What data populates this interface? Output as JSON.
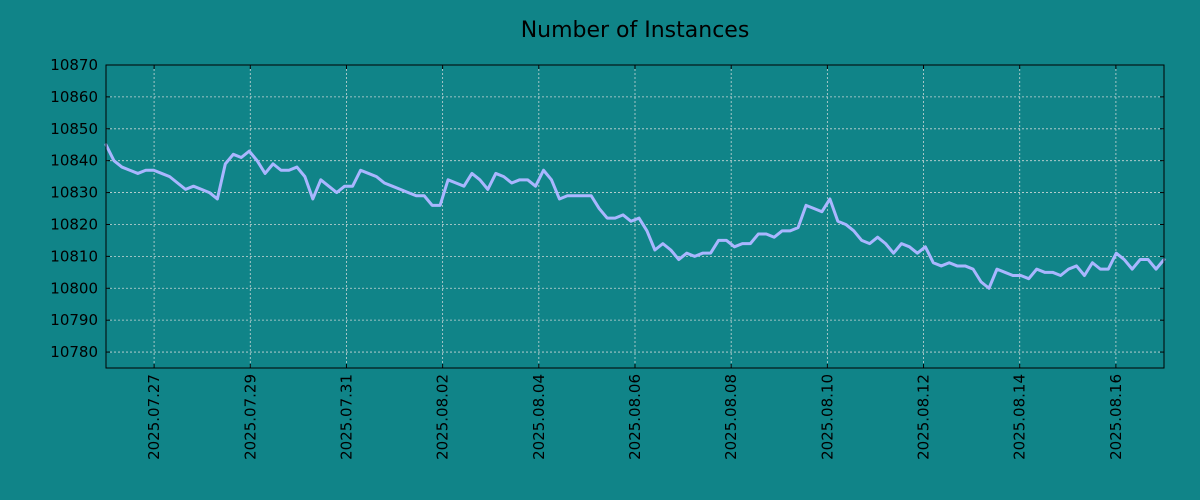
{
  "chart_data": {
    "type": "line",
    "title": "Number of Instances",
    "xlabel": "",
    "ylabel": "",
    "background_color": "#108488",
    "plot_background_color": "#108488",
    "line_color": "#a9b6ff",
    "grid": true,
    "grid_style": "dashed",
    "x_start": "2025.07.26",
    "x_end": "2025.08.17",
    "xlim": [
      "2025.07.26",
      "2025.08.17"
    ],
    "ylim": [
      10775,
      10870
    ],
    "yticks": [
      10780,
      10790,
      10800,
      10810,
      10820,
      10830,
      10840,
      10850,
      10860,
      10870
    ],
    "xticks": [
      "2025.07.27",
      "2025.07.29",
      "2025.07.31",
      "2025.08.02",
      "2025.08.04",
      "2025.08.06",
      "2025.08.08",
      "2025.08.10",
      "2025.08.12",
      "2025.08.14",
      "2025.08.16"
    ],
    "series": [
      {
        "values": [
          10845,
          10840,
          10838,
          10837,
          10836,
          10837,
          10837,
          10836,
          10835,
          10833,
          10831,
          10832,
          10831,
          10830,
          10828,
          10839,
          10842,
          10841,
          10843,
          10840,
          10836,
          10839,
          10837,
          10837,
          10838,
          10835,
          10828,
          10834,
          10832,
          10830,
          10832,
          10832,
          10837,
          10836,
          10835,
          10833,
          10832,
          10831,
          10830,
          10829,
          10829,
          10826,
          10826,
          10834,
          10833,
          10832,
          10836,
          10834,
          10831,
          10836,
          10835,
          10833,
          10834,
          10834,
          10832,
          10837,
          10834,
          10828,
          10829,
          10829,
          10829,
          10829,
          10825,
          10822,
          10822,
          10823,
          10821,
          10822,
          10818,
          10812,
          10814,
          10812,
          10809,
          10811,
          10810,
          10811,
          10811,
          10815,
          10815,
          10813,
          10814,
          10814,
          10817,
          10817,
          10816,
          10818,
          10818,
          10819,
          10826,
          10825,
          10824,
          10828,
          10821,
          10820,
          10818,
          10815,
          10814,
          10816,
          10814,
          10811,
          10814,
          10813,
          10811,
          10813,
          10808,
          10807,
          10808,
          10807,
          10807,
          10806,
          10802,
          10800,
          10806,
          10805,
          10804,
          10804,
          10803,
          10806,
          10805,
          10805,
          10804,
          10806,
          10807,
          10804,
          10808,
          10806,
          10806,
          10811,
          10809,
          10806,
          10809,
          10809,
          10806,
          10809
        ]
      }
    ]
  }
}
